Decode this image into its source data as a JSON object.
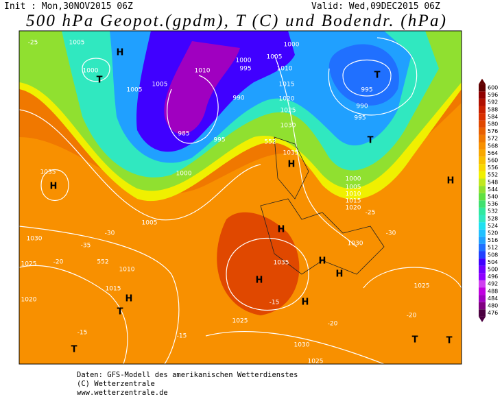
{
  "header": {
    "init": "Init : Mon,30NOV2015 06Z",
    "valid": "Valid: Wed,09DEC2015 06Z",
    "title": "500 hPa Geopot.(gpdm), T (C) und Bodendr. (hPa)"
  },
  "map_labels": [
    "1005",
    "H",
    "1000",
    "T",
    "1005",
    "1005",
    "1010",
    "1000",
    "995",
    "1005",
    "1000",
    "1010",
    "T",
    "995",
    "1015",
    "1020",
    "990",
    "995",
    "1025",
    "1030",
    "T",
    "990",
    "985",
    "995",
    "1000",
    "1035",
    "H",
    "1000",
    "1005",
    "1010",
    "1015",
    "1020",
    "1030",
    "H",
    "1035",
    "1030",
    "1025",
    "1020",
    "1005",
    "1010",
    "1015",
    "H",
    "T",
    "1035",
    "H",
    "H",
    "H",
    "1025",
    "1030",
    "1025",
    "1025",
    "H",
    "T",
    "T",
    "T",
    "552",
    "552",
    "H",
    "H",
    "-25",
    "-30",
    "-35",
    "-30",
    "-25",
    "-20",
    "-15",
    "-15",
    "-20",
    "-15",
    "-20"
  ],
  "legend": {
    "labels": [
      476,
      480,
      484,
      488,
      492,
      496,
      500,
      504,
      508,
      512,
      516,
      520,
      524,
      528,
      532,
      536,
      540,
      544,
      548,
      552,
      556,
      560,
      564,
      568,
      572,
      576,
      580,
      584,
      588,
      592,
      596,
      600
    ],
    "colors": [
      "#4b0040",
      "#800080",
      "#a000c0",
      "#c000e0",
      "#d040f0",
      "#9000ff",
      "#7000ff",
      "#4000ff",
      "#2040ff",
      "#2070ff",
      "#20a0ff",
      "#20c0ff",
      "#20e0f0",
      "#30e8c0",
      "#30e8a0",
      "#40e070",
      "#60e040",
      "#90e030",
      "#c0e820",
      "#f0f000",
      "#f8d800",
      "#f8c000",
      "#f8a800",
      "#f89000",
      "#f07800",
      "#e86000",
      "#e04800",
      "#d83000",
      "#c82000",
      "#b01000",
      "#900000",
      "#600000"
    ]
  },
  "footer": {
    "line1": "Daten: GFS-Modell des amerikanischen Wetterdienstes",
    "line2": "(C) Wetterzentrale",
    "line3": "www.wetterzentrale.de"
  }
}
